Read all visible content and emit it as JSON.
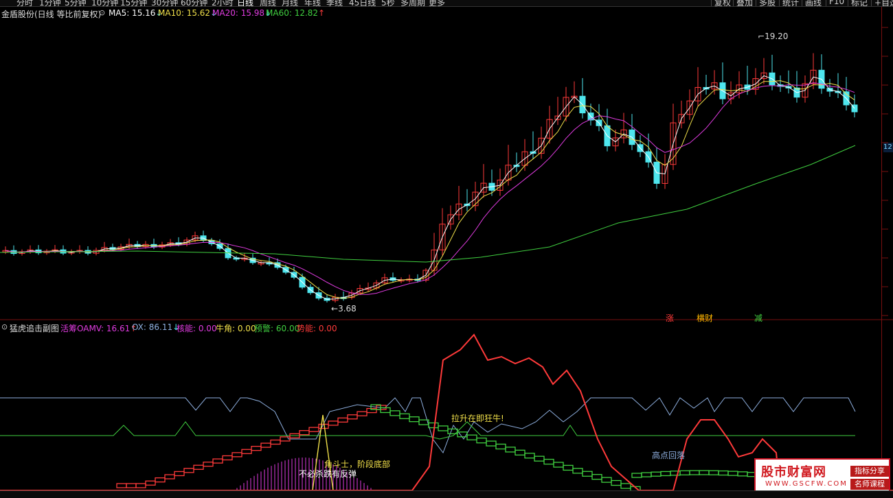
{
  "toolbar": {
    "periods": [
      "分时",
      "1分钟",
      "5分钟",
      "10分钟",
      "15分钟",
      "30分钟",
      "60分钟",
      "2小时",
      "日线",
      "周线",
      "月线",
      "年线",
      "季线",
      "45日线",
      "5秒",
      "多周期",
      "更多"
    ],
    "active_period": "日线",
    "right_buttons": [
      "复权",
      "叠加",
      "多股",
      "统计",
      "画线",
      "F10",
      "标记",
      "+自选"
    ]
  },
  "main_chart": {
    "title": "金盾股份(日线 等比前复权)",
    "ma": [
      {
        "label": "MA5: 15.16",
        "arrow": "↓",
        "color": "#ffffff"
      },
      {
        "label": "MA10: 15.62",
        "arrow": "↓",
        "color": "#f2e14a"
      },
      {
        "label": "MA20: 15.98",
        "arrow": "↓",
        "color": "#e23ce2"
      },
      {
        "label": "MA60: 12.82",
        "arrow": "↑",
        "color": "#40d040"
      }
    ],
    "high_label": "19.20",
    "low_label": "3.68",
    "price_box": "12",
    "signals": [
      {
        "text": "涨",
        "color": "#ff3a3a"
      },
      {
        "text": "横财",
        "color": "#ffb800"
      },
      {
        "text": "减",
        "color": "#40d040"
      }
    ]
  },
  "sub_chart": {
    "title": "猛虎追击副图",
    "indicators": [
      {
        "label": "活筹OAMV: 16.61",
        "arrow": "↑",
        "color": "#e23ce2"
      },
      {
        "label": "OX: 86.11",
        "arrow": "↓",
        "color": "#8fb0e0"
      },
      {
        "label": "核能: 0.00",
        "arrow": "",
        "color": "#e23ce2"
      },
      {
        "label": "牛角: 0.00",
        "arrow": "",
        "color": "#f2e14a"
      },
      {
        "label": "预警: 60.00",
        "arrow": "",
        "color": "#40d040"
      },
      {
        "label": "势能: 0.00",
        "arrow": "",
        "color": "#ff3a3a"
      }
    ],
    "annotations": {
      "bull_rise": "拉升在即狂牛!",
      "bottom": "角斗士，阶段底部",
      "no_panic": "不必杀跌有反弹",
      "high_fall": "高点回落"
    }
  },
  "watermark": {
    "brand": "股市财富网",
    "url": "WWW.GSCFW.COM",
    "badge1": "指标分享",
    "badge2": "名师课程"
  },
  "colors": {
    "up": "#ff3a3a",
    "down": "#4ee6ee",
    "ma5": "#ffffff",
    "ma10": "#f2e14a",
    "ma20": "#e23ce2",
    "ma60": "#40d040"
  }
}
